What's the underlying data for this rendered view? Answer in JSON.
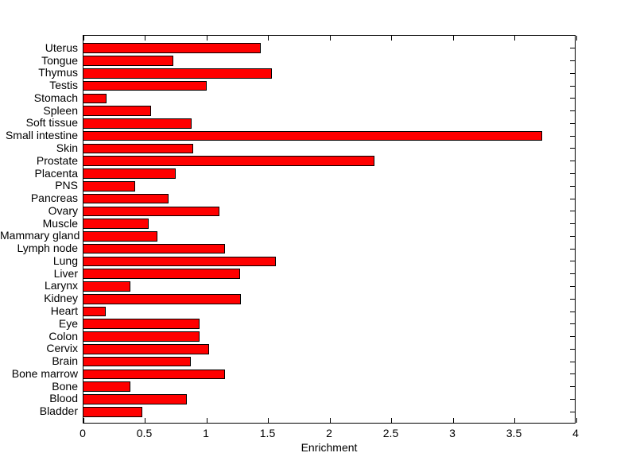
{
  "chart_data": {
    "type": "bar",
    "orientation": "horizontal",
    "xlabel": "Enrichment",
    "ylabel": "",
    "xlim": [
      0,
      4
    ],
    "xticks": [
      0,
      0.5,
      1,
      1.5,
      2,
      2.5,
      3,
      3.5,
      4
    ],
    "xtick_labels": [
      "0",
      "0.5",
      "1",
      "1.5",
      "2",
      "2.5",
      "3",
      "3.5",
      "4"
    ],
    "grid": false,
    "box": true,
    "bar_color": "#ff0000",
    "bar_edge_color": "#000000",
    "background_color": "#ffffff",
    "categories": [
      "Uterus",
      "Tongue",
      "Thymus",
      "Testis",
      "Stomach",
      "Spleen",
      "Soft tissue",
      "Small intestine",
      "Skin",
      "Prostate",
      "Placenta",
      "PNS",
      "Pancreas",
      "Ovary",
      "Muscle",
      "Mammary gland",
      "Lymph node",
      "Lung",
      "Liver",
      "Larynx",
      "Kidney",
      "Heart",
      "Eye",
      "Colon",
      "Cervix",
      "Brain",
      "Bone marrow",
      "Bone",
      "Blood",
      "Bladder"
    ],
    "values": [
      1.44,
      0.73,
      1.53,
      1.0,
      0.19,
      0.55,
      0.88,
      3.72,
      0.89,
      2.36,
      0.75,
      0.42,
      0.69,
      1.1,
      0.53,
      0.6,
      1.15,
      1.56,
      1.27,
      0.38,
      1.28,
      0.18,
      0.94,
      0.94,
      1.02,
      0.87,
      1.15,
      0.38,
      0.84,
      0.48
    ]
  }
}
